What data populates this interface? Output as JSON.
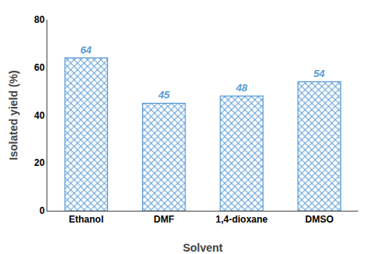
{
  "chart_data": {
    "type": "bar",
    "xlabel": "Solvent",
    "ylabel": "Isolated yield (%)",
    "categories": [
      "Ethanol",
      "DMF",
      "1,4-dioxane",
      "DMSO"
    ],
    "values": [
      64,
      45,
      48,
      54
    ],
    "color": "#5b9bd5",
    "ylim": [
      0,
      80
    ],
    "yticks": [
      0,
      20,
      40,
      60,
      80
    ],
    "data_labels": true,
    "grid": false
  }
}
